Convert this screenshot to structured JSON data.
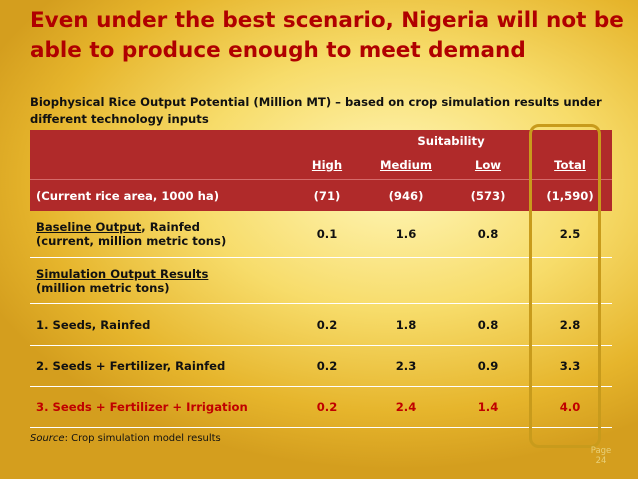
{
  "title": "Even under the best scenario, Nigeria will not be able to produce enough to meet demand",
  "subtitle": "Biophysical Rice Output Potential (Million MT) – based on crop simulation results under different technology inputs",
  "table": {
    "group_header": "Suitability",
    "columns": [
      "High",
      "Medium",
      "Low",
      "Total"
    ],
    "area_row": {
      "label": "(Current rice area, 1000 ha)",
      "values": [
        "(71)",
        "(946)",
        "(573)",
        "(1,590)"
      ]
    },
    "baseline_row": {
      "label_underlined": "Baseline Output",
      "label_rest": ", Rainfed",
      "label_line2": "(current, million metric tons)",
      "values": [
        "0.1",
        "1.6",
        "0.8",
        "2.5"
      ]
    },
    "sim_header": {
      "line1": "Simulation Output Results",
      "line2": "(million metric tons)"
    },
    "rows": [
      {
        "label": "1. Seeds,  Rainfed",
        "values": [
          "0.2",
          "1.8",
          "0.8",
          "2.8"
        ]
      },
      {
        "label": "2. Seeds + Fertilizer,  Rainfed",
        "values": [
          "0.2",
          "2.3",
          "0.9",
          "3.3"
        ]
      },
      {
        "label": "3. Seeds + Fertilizer + Irrigation",
        "values": [
          "0.2",
          "2.4",
          "1.4",
          "4.0"
        ]
      }
    ]
  },
  "source": {
    "label": "Source",
    "text": ":   Crop simulation model results"
  },
  "page": {
    "label": "Page",
    "number": "24"
  },
  "colors": {
    "title": "#b00000",
    "header_bg": "#b02a2a",
    "highlight_border": "#c89b1c",
    "emphasis": "#c00000"
  }
}
